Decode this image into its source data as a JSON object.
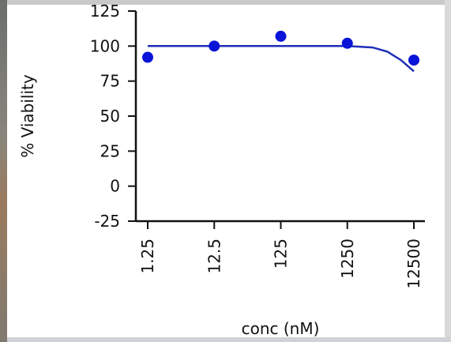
{
  "chart_data": {
    "type": "scatter",
    "xlabel": "conc (nM)",
    "ylabel": "% Viability",
    "x_scale": "log",
    "x_categories": [
      "1.25",
      "12.5",
      "125",
      "1250",
      "12500"
    ],
    "x": [
      1.25,
      12.5,
      125,
      1250,
      12500
    ],
    "ylim": [
      -25,
      125
    ],
    "yticks": [
      -25,
      0,
      25,
      50,
      75,
      100,
      125
    ],
    "ytick_labels": [
      "-25",
      "0",
      "25",
      "50",
      "75",
      "100",
      "125"
    ],
    "series": [
      {
        "type": "scatter",
        "x": [
          1.25,
          12.5,
          125,
          1250,
          12500
        ],
        "y": [
          92,
          100,
          107,
          102,
          90
        ]
      },
      {
        "type": "fit-line",
        "x": [
          1.25,
          12.5,
          125,
          1250,
          3000,
          5000,
          8000,
          10000,
          12500
        ],
        "y": [
          100,
          100,
          100,
          100,
          99,
          96,
          90,
          86,
          82
        ]
      }
    ],
    "colors": {
      "points": "#0a14d8",
      "fit": "#1f2fb8",
      "axes": "#111111"
    },
    "grid": false,
    "legend": "none"
  }
}
